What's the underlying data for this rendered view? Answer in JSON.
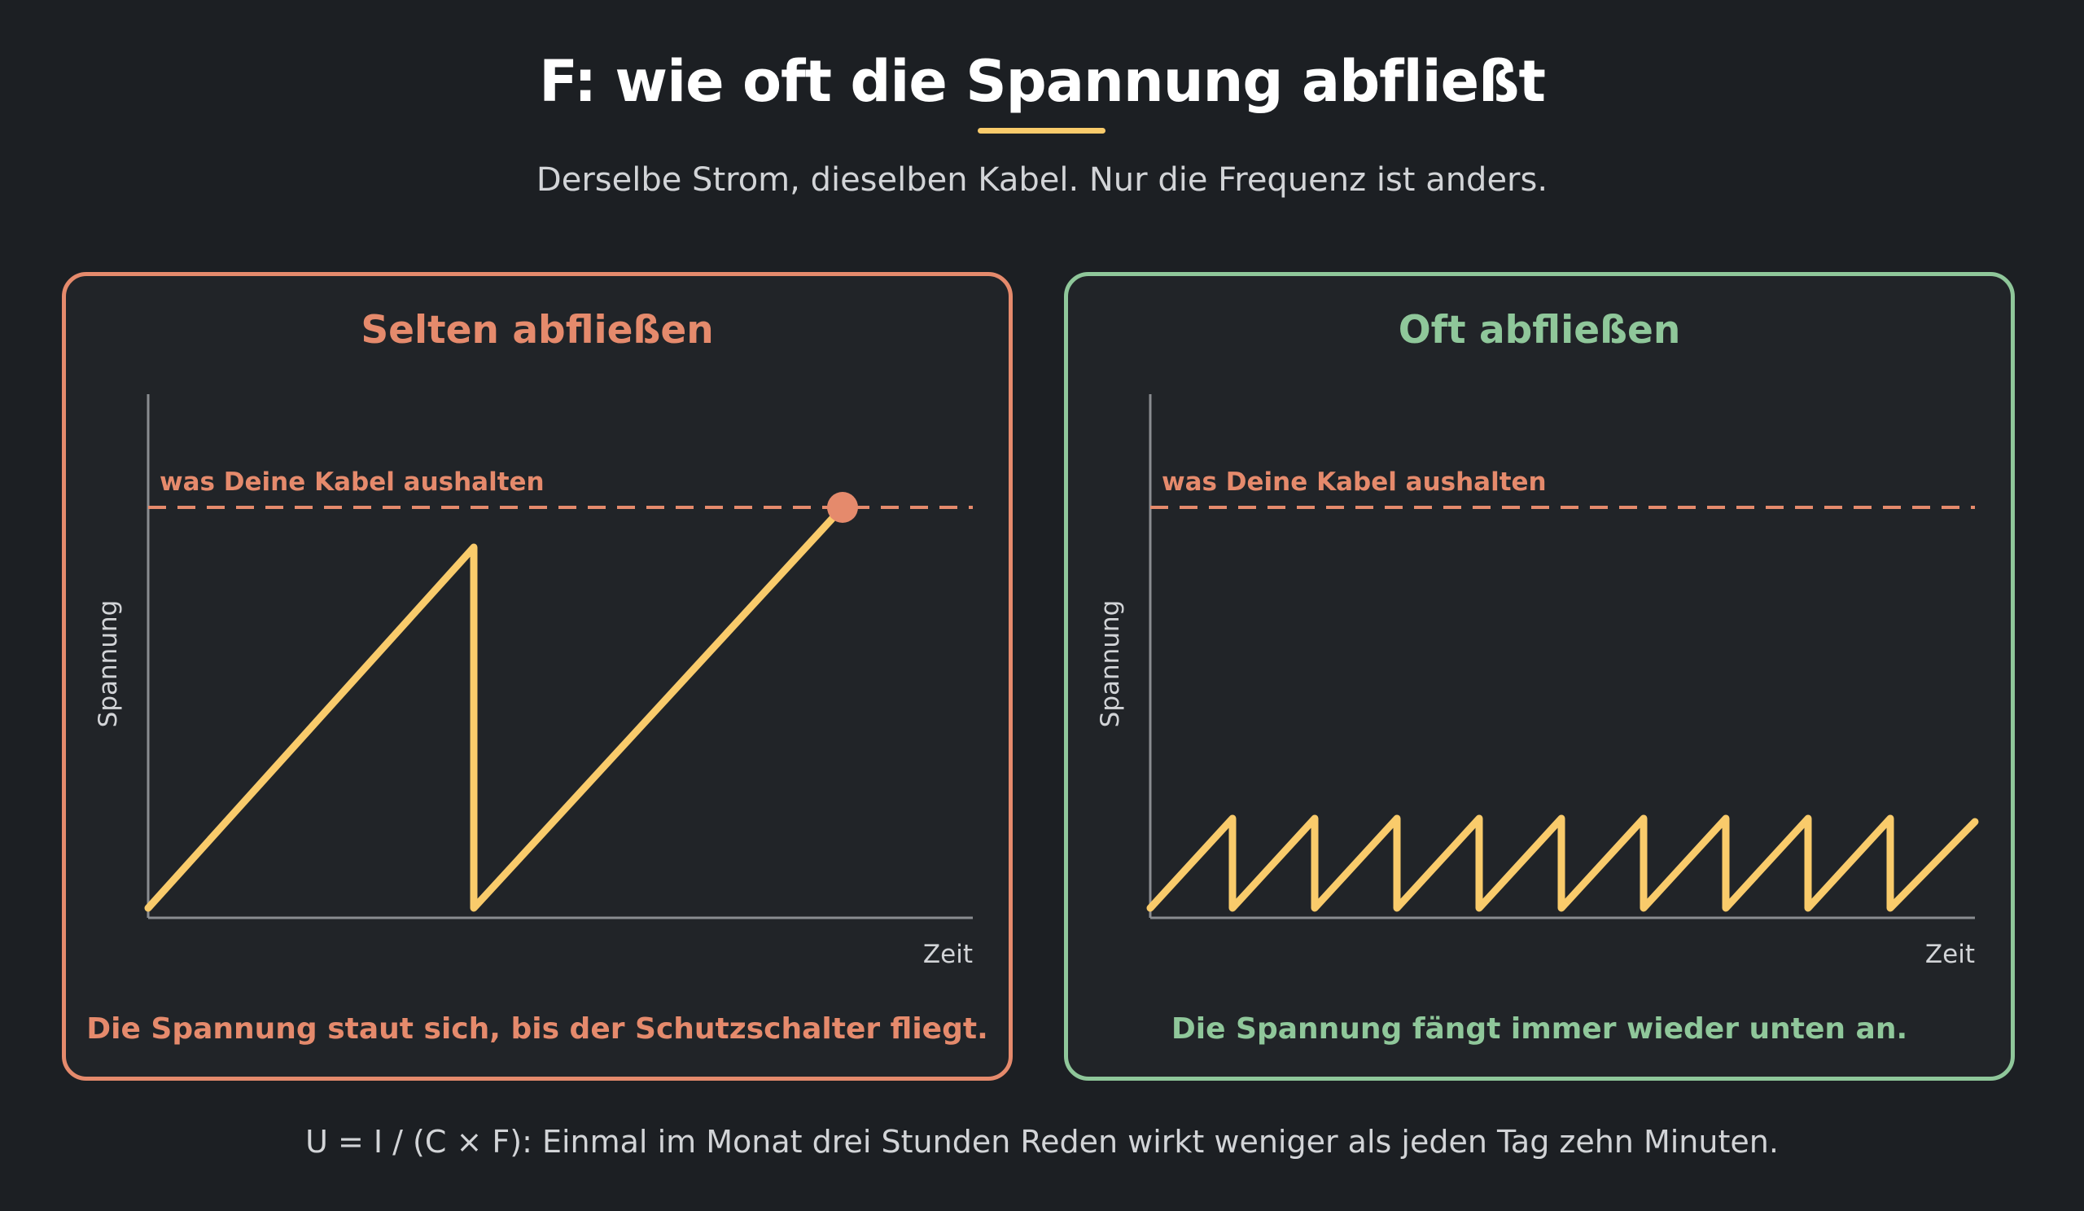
{
  "header": {
    "title": "F: wie oft die Spannung abfließt",
    "subtitle": "Derselbe Strom, dieselben Kabel. Nur die Frequenz ist anders."
  },
  "footer": {
    "text": "U = I / (C × F): Einmal im Monat drei Stunden Reden wirkt weniger als jeden Tag zehn Minuten."
  },
  "colors": {
    "background": "#1c1f23",
    "panel_bg": "#212428",
    "rare_accent": "#e58a6c",
    "often_accent": "#8fc79a",
    "signal": "#f9cb6b",
    "axis": "#8a8d91"
  },
  "panels": [
    {
      "title": "Selten abfließen",
      "caption": "Die Spannung staut sich, bis der Schutzschalter fliegt.",
      "threshold_label": "was Deine Kabel aushalten",
      "ylabel": "Spannung",
      "xlabel": "Zeit"
    },
    {
      "title": "Oft abfließen",
      "caption": "Die Spannung fängt immer wieder unten an.",
      "threshold_label": "was Deine Kabel aushalten",
      "ylabel": "Spannung",
      "xlabel": "Zeit"
    }
  ]
}
